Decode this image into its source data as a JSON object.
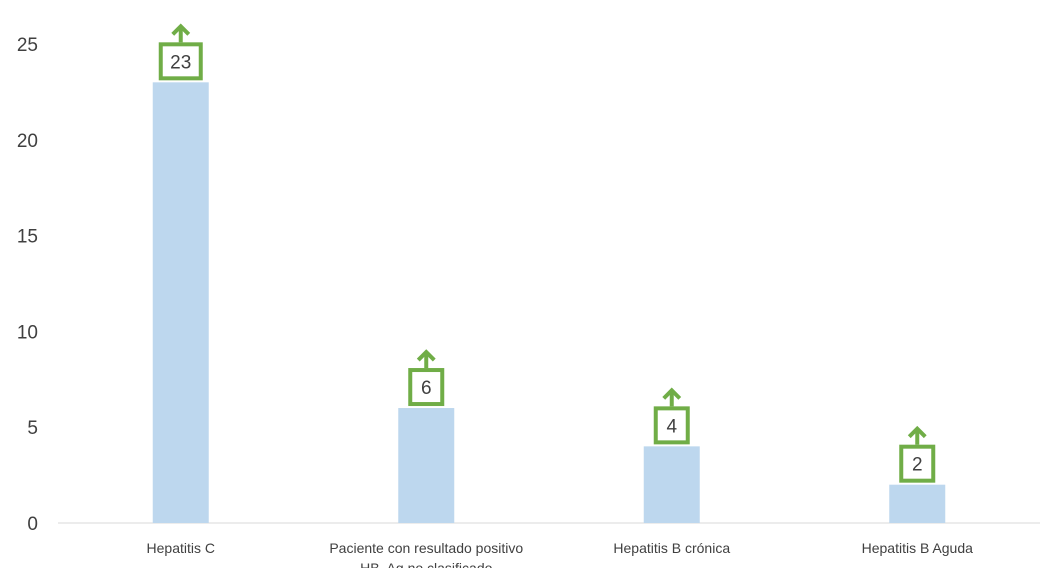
{
  "chart_data": {
    "type": "bar",
    "title": "",
    "xlabel": "",
    "ylabel": "",
    "categories": [
      "Hepatitis C",
      "Paciente con resultado positivo HB. Ag no clasificado",
      "Hepatitis B crónica",
      "Hepatitis B Aguda"
    ],
    "category_label_lines": [
      [
        "Hepatitis C"
      ],
      [
        "Paciente con resultado positivo",
        "HB. Ag no clasificado"
      ],
      [
        "Hepatitis B crónica"
      ],
      [
        "Hepatitis B Aguda"
      ]
    ],
    "values": [
      23,
      6,
      4,
      2
    ],
    "ylim": [
      0,
      25
    ],
    "yticks": [
      0,
      5,
      10,
      15,
      20,
      25
    ],
    "grid": false,
    "legend": "none",
    "bar_color": "#bdd7ee",
    "label_callout_color": "#70ad47",
    "text_color": "#404040",
    "axis_color": "#d9d9d9"
  }
}
